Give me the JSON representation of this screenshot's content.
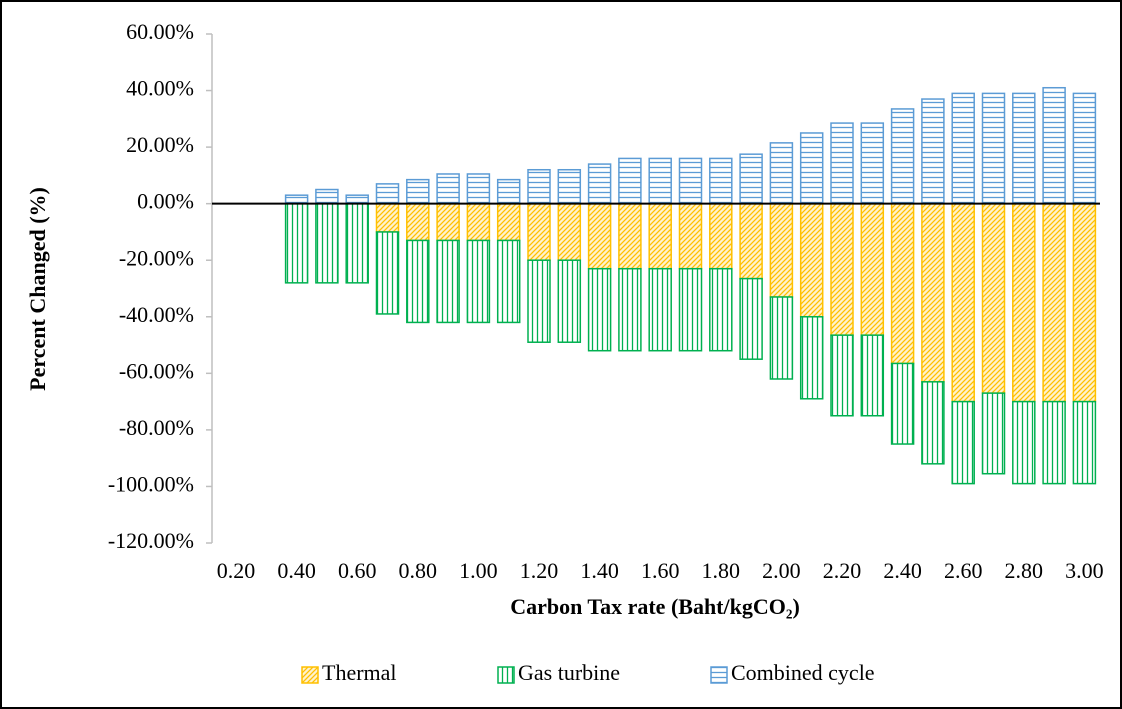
{
  "chart_data": {
    "type": "bar",
    "stacked": true,
    "y_label": "Percent Changed (%)",
    "x_label": "Carbon Tax rate (Baht/kgCO₂)",
    "categories": [
      "0.20",
      null,
      "0.40",
      null,
      "0.60",
      null,
      "0.80",
      null,
      "1.00",
      null,
      "1.20",
      null,
      "1.40",
      null,
      "1.60",
      null,
      "1.80",
      null,
      "2.00",
      null,
      "2.20",
      null,
      "2.40",
      null,
      "2.60",
      null,
      "2.80",
      null,
      "3.00"
    ],
    "series": [
      {
        "name": "Thermal",
        "color": "#ffc000",
        "hatch": "diagonal",
        "values": [
          null,
          null,
          0,
          0,
          0,
          -10,
          -13,
          -13,
          -13,
          -13,
          -20,
          -20,
          -23,
          -23,
          -23,
          -23,
          -23,
          -26.5,
          -33,
          -40,
          -46.5,
          -46.5,
          -56.5,
          -63,
          -70,
          -67,
          -70,
          -70,
          -70
        ]
      },
      {
        "name": "Gas turbine",
        "color": "#00b050",
        "hatch": "vertical",
        "values": [
          null,
          null,
          -28,
          -28,
          -28,
          -29,
          -29,
          -29,
          -29,
          -29,
          -29,
          -29,
          -29,
          -29,
          -29,
          -29,
          -29,
          -28.5,
          -29,
          -29,
          -28.5,
          -28.5,
          -28.5,
          -29,
          -29,
          -28.5,
          -29,
          -29,
          -29
        ]
      },
      {
        "name": "Combined cycle",
        "color": "#5b9bd5",
        "hatch": "horizontal",
        "values": [
          null,
          null,
          3,
          5,
          3,
          7,
          8.5,
          10.5,
          10.5,
          8.5,
          12,
          12,
          14,
          16,
          16,
          16,
          16,
          17.5,
          21.5,
          25,
          28.5,
          28.5,
          33.5,
          37,
          39,
          39,
          39,
          41,
          39
        ]
      }
    ],
    "ylim": [
      -120,
      60
    ],
    "yticks": [
      {
        "value": -120,
        "label": "-120.00%"
      },
      {
        "value": -100,
        "label": "-100.00%"
      },
      {
        "value": -80,
        "label": "-80.00%"
      },
      {
        "value": -60,
        "label": "-60.00%"
      },
      {
        "value": -40,
        "label": "-40.00%"
      },
      {
        "value": -20,
        "label": "-20.00%"
      },
      {
        "value": 0,
        "label": "0.00%"
      },
      {
        "value": 20,
        "label": "20.00%"
      },
      {
        "value": 40,
        "label": "40.00%"
      },
      {
        "value": 60,
        "label": "60.00%"
      }
    ],
    "legend": "bottom"
  }
}
